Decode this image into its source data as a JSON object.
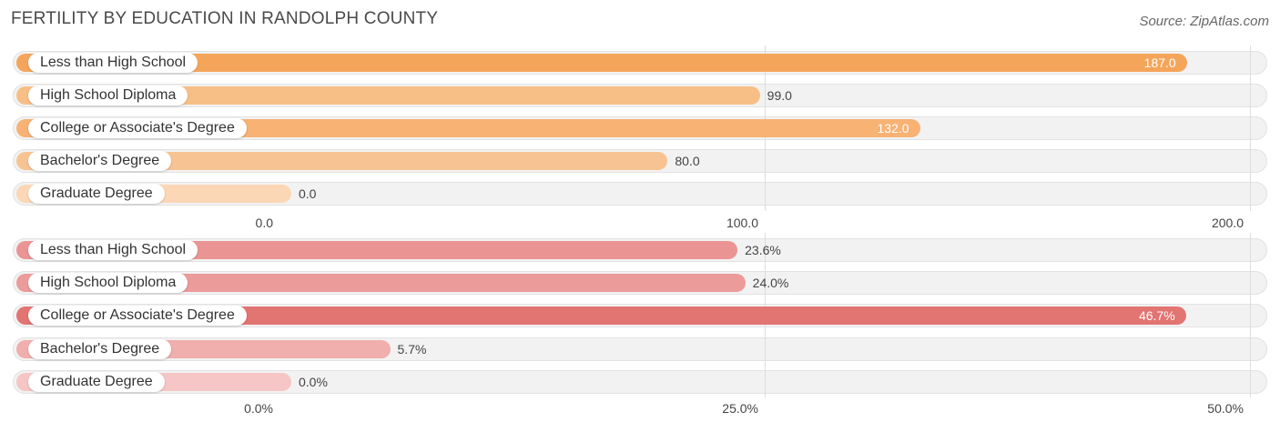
{
  "header": {
    "title": "FERTILITY BY EDUCATION IN RANDOLPH COUNTY",
    "source": "Source: ZipAtlas.com"
  },
  "chart_data": [
    {
      "type": "bar",
      "orientation": "horizontal",
      "categories": [
        "Less than High School",
        "High School Diploma",
        "College or Associate's Degree",
        "Bachelor's Degree",
        "Graduate Degree"
      ],
      "values": [
        187.0,
        99.0,
        132.0,
        80.0,
        0.0
      ],
      "value_labels": [
        "187.0",
        "99.0",
        "132.0",
        "80.0",
        "0.0"
      ],
      "xlim": [
        0,
        200
      ],
      "ticks": [
        "0.0",
        "100.0",
        "200.0"
      ],
      "tick_values": [
        0,
        100,
        200
      ],
      "colors": [
        "#f5a55a",
        "#f7bf85",
        "#f7b274",
        "#f8c393",
        "#fbd7b5"
      ],
      "label_inside": [
        true,
        false,
        true,
        false,
        false
      ]
    },
    {
      "type": "bar",
      "orientation": "horizontal",
      "categories": [
        "Less than High School",
        "High School Diploma",
        "College or Associate's Degree",
        "Bachelor's Degree",
        "Graduate Degree"
      ],
      "values": [
        23.6,
        24.0,
        46.7,
        5.7,
        0.0
      ],
      "value_labels": [
        "23.6%",
        "24.0%",
        "46.7%",
        "5.7%",
        "0.0%"
      ],
      "xlim": [
        0,
        50
      ],
      "ticks": [
        "0.0%",
        "25.0%",
        "50.0%"
      ],
      "tick_values": [
        0,
        25,
        50
      ],
      "colors": [
        "#ea9594",
        "#eb9b9a",
        "#e27472",
        "#f0aeac",
        "#f5c6c5"
      ],
      "label_inside": [
        false,
        false,
        true,
        false,
        false
      ]
    }
  ]
}
